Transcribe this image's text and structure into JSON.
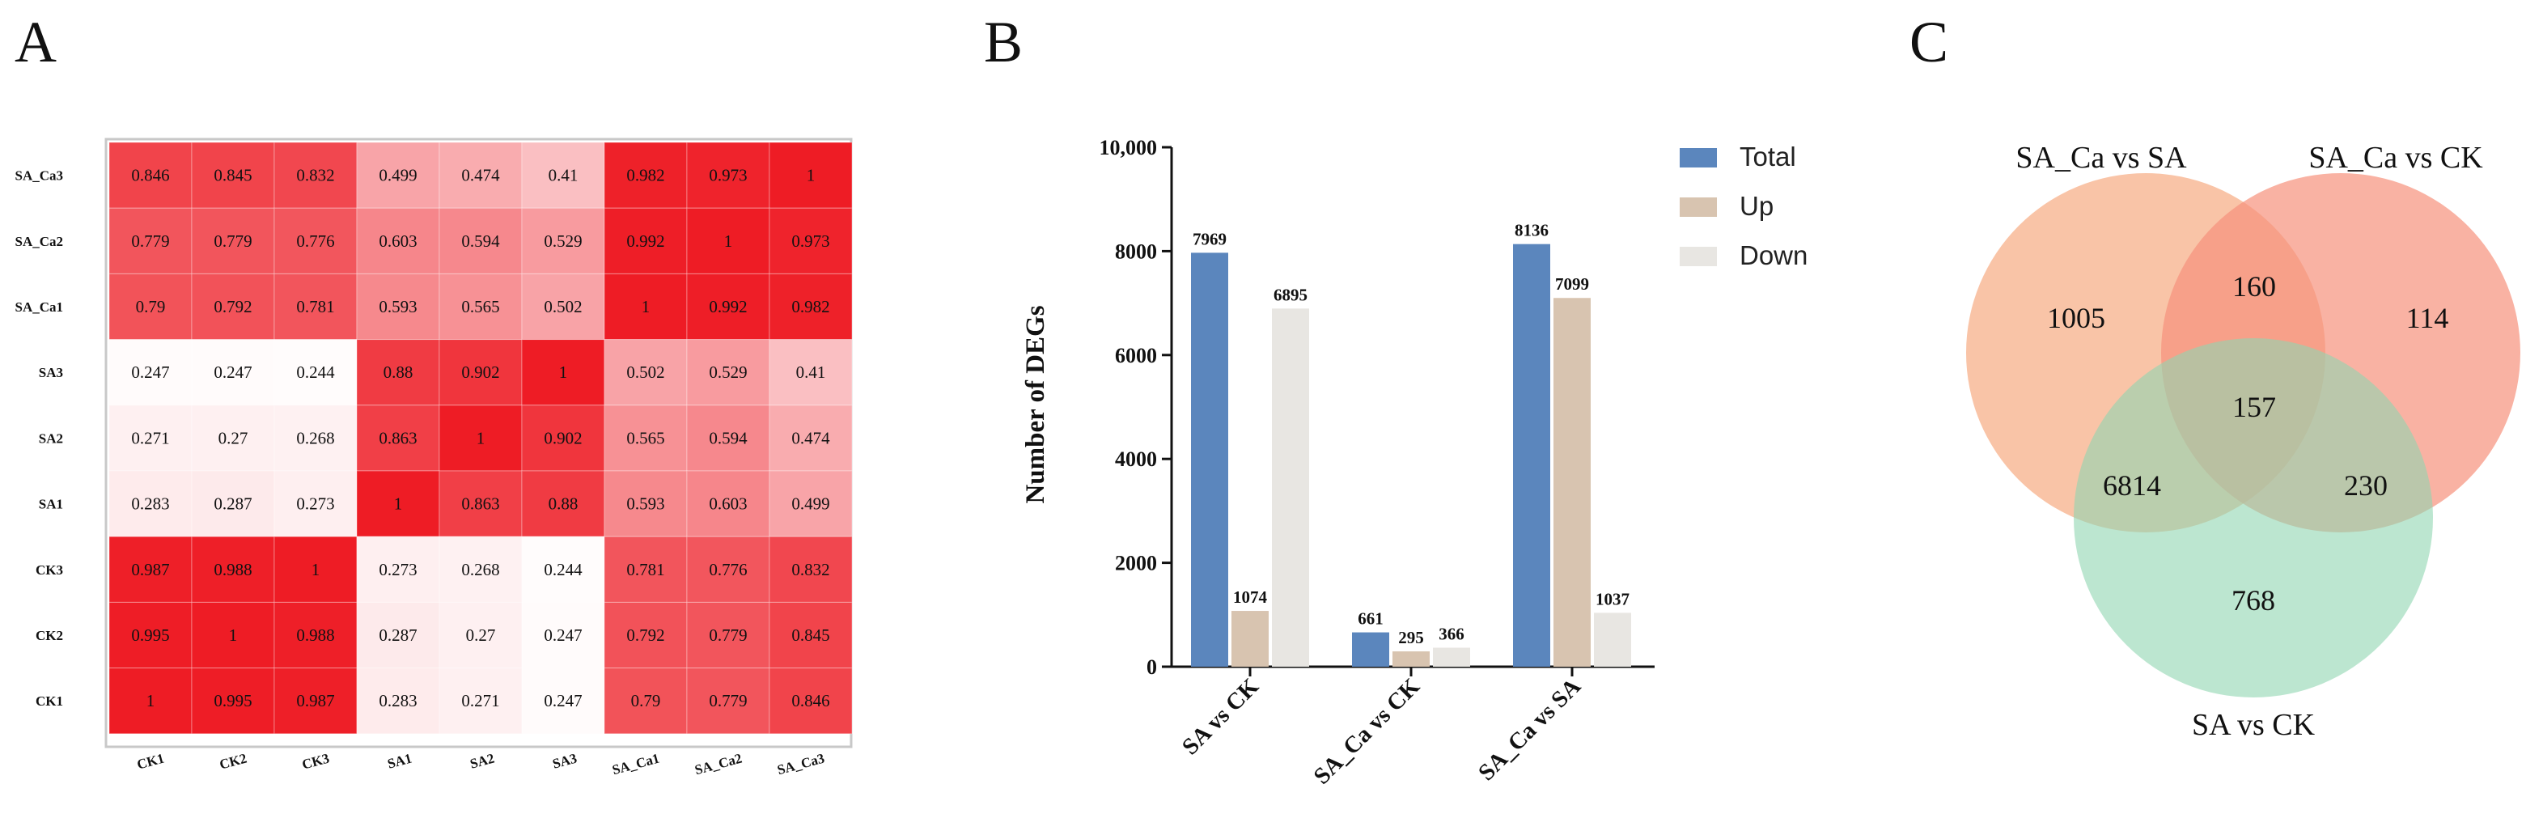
{
  "panels": {
    "a": "A",
    "b": "B",
    "c": "C"
  },
  "colors": {
    "heat_low": "#ffffff",
    "heat_high": "#ee1c25",
    "total": "#5b86bd",
    "up": "#d8c4b0",
    "down": "#e8e6e2",
    "venn_left": "#f7ab82",
    "venn_right": "#f7917c",
    "venn_bottom": "#8fd6b0"
  },
  "chart_data": [
    {
      "type": "heatmap",
      "rows": [
        "SA_Ca3",
        "SA_Ca2",
        "SA_Ca1",
        "SA3",
        "SA2",
        "SA1",
        "CK3",
        "CK2",
        "CK1"
      ],
      "columns": [
        "CK1",
        "CK2",
        "CK3",
        "SA1",
        "SA2",
        "SA3",
        "SA_Ca1",
        "SA_Ca2",
        "SA_Ca3"
      ],
      "values": [
        [
          "0.846",
          "0.845",
          "0.832",
          "0.499",
          "0.474",
          "0.41",
          "0.982",
          "0.973",
          "1"
        ],
        [
          "0.779",
          "0.779",
          "0.776",
          "0.603",
          "0.594",
          "0.529",
          "0.992",
          "1",
          "0.973"
        ],
        [
          "0.79",
          "0.792",
          "0.781",
          "0.593",
          "0.565",
          "0.502",
          "1",
          "0.992",
          "0.982"
        ],
        [
          "0.247",
          "0.247",
          "0.244",
          "0.88",
          "0.902",
          "1",
          "0.502",
          "0.529",
          "0.41"
        ],
        [
          "0.271",
          "0.27",
          "0.268",
          "0.863",
          "1",
          "0.902",
          "0.565",
          "0.594",
          "0.474"
        ],
        [
          "0.283",
          "0.287",
          "0.273",
          "1",
          "0.863",
          "0.88",
          "0.593",
          "0.603",
          "0.499"
        ],
        [
          "0.987",
          "0.988",
          "1",
          "0.273",
          "0.268",
          "0.244",
          "0.781",
          "0.776",
          "0.832"
        ],
        [
          "0.995",
          "1",
          "0.988",
          "0.287",
          "0.27",
          "0.247",
          "0.792",
          "0.779",
          "0.845"
        ],
        [
          "1",
          "0.995",
          "0.987",
          "0.283",
          "0.271",
          "0.247",
          "0.79",
          "0.779",
          "0.846"
        ]
      ],
      "vmin": 0.24,
      "vmax": 1
    },
    {
      "type": "bar",
      "categories": [
        "SA vs CK",
        "SA_Ca vs CK",
        "SA_Ca vs SA"
      ],
      "series": [
        {
          "name": "Total",
          "values": [
            7969,
            661,
            8136
          ]
        },
        {
          "name": "Up",
          "values": [
            1074,
            295,
            7099
          ]
        },
        {
          "name": "Down",
          "values": [
            6895,
            366,
            1037
          ]
        }
      ],
      "ylabel": "Number of DEGs",
      "ylim": [
        0,
        10000
      ],
      "yticks": [
        "0",
        "2000",
        "4000",
        "6000",
        "8000",
        "10,000"
      ],
      "legend_position": "top-right"
    },
    {
      "type": "venn",
      "sets": [
        "SA_Ca vs SA",
        "SA_Ca vs CK",
        "SA vs CK"
      ],
      "regions": {
        "only_a": "1005",
        "a_b": "160",
        "only_b": "114",
        "a_b_c": "157",
        "a_c": "6814",
        "b_c": "230",
        "only_c": "768"
      }
    }
  ]
}
